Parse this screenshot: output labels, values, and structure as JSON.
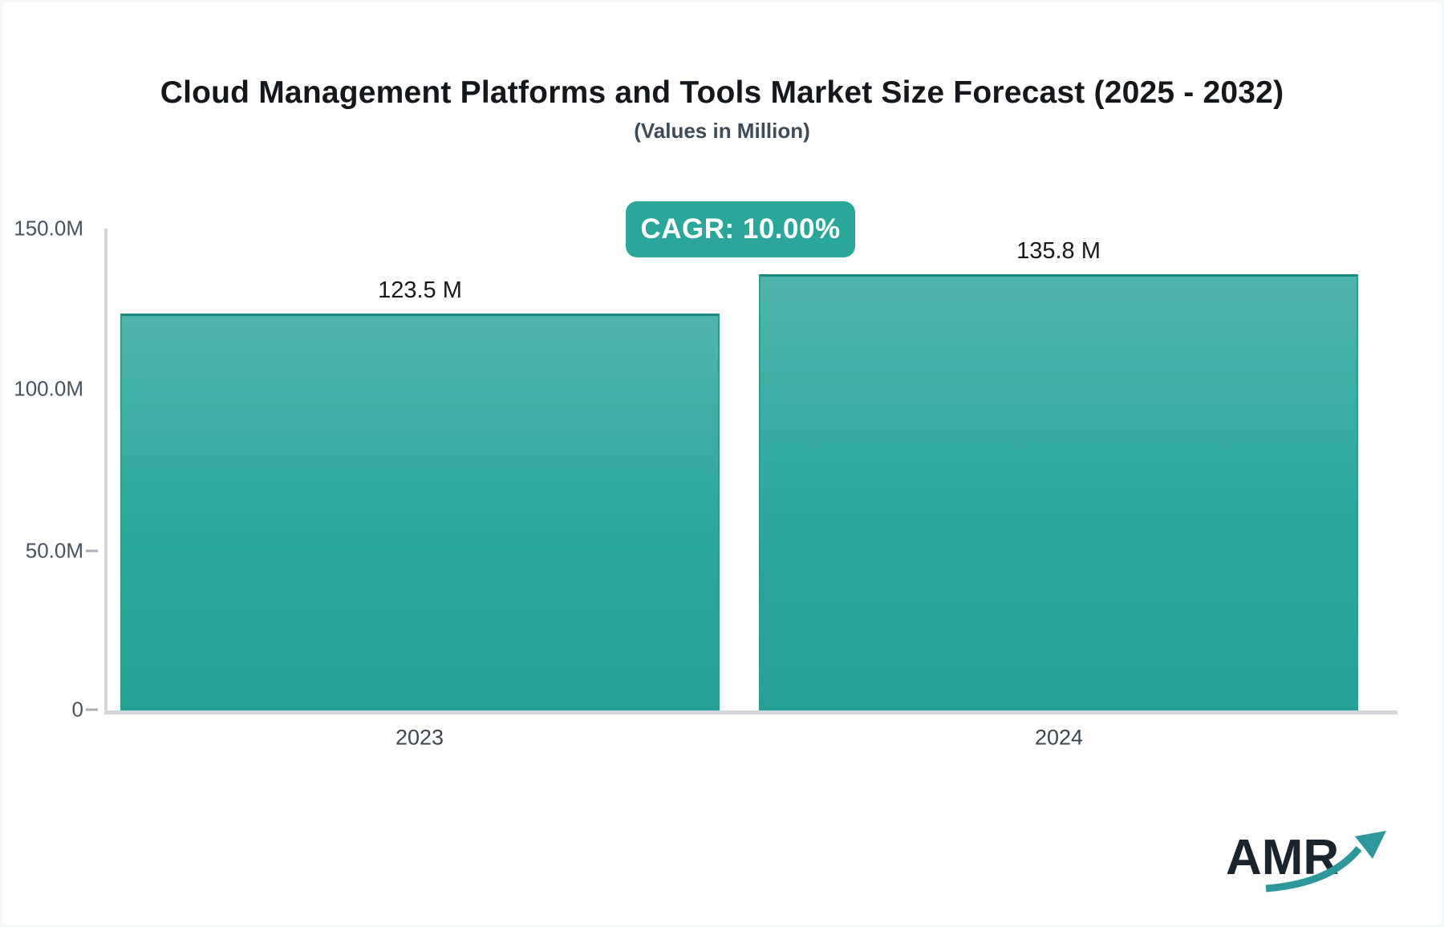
{
  "header": {
    "title": "Cloud Management Platforms and Tools Market Size Forecast (2025 - 2032)",
    "subtitle": "(Values in Million)"
  },
  "badge": {
    "label": "CAGR: 10.00%",
    "background_color": "#2aa79a",
    "text_color": "#ffffff"
  },
  "chart_data": {
    "type": "bar",
    "title": "Cloud Management Platforms and Tools Market Size Forecast (2025 - 2032)",
    "subtitle": "(Values in Million)",
    "categories": [
      "2023",
      "2024"
    ],
    "values": [
      123.5,
      135.8
    ],
    "value_labels": [
      "123.5 M",
      "135.8 M"
    ],
    "units": "Million",
    "cagr": "10.00%",
    "xlabel": "",
    "ylabel": "",
    "ylim": [
      0,
      150
    ],
    "yticks": [
      {
        "label": "150.0M",
        "value": 150
      },
      {
        "label": "100.0M",
        "value": 100
      },
      {
        "label": "50.0M",
        "value": 50
      },
      {
        "label": "0",
        "value": 0
      }
    ],
    "grid": false,
    "legend": false,
    "bar_gradient_top": "#4fb5ac",
    "bar_gradient_bottom": "#26a295",
    "bar_border_color": "#19887f",
    "axis_color": "#d3d7dc"
  },
  "logo": {
    "text": "AMR",
    "text_color": "#1a242e",
    "arrow_color": "#2e979b"
  }
}
